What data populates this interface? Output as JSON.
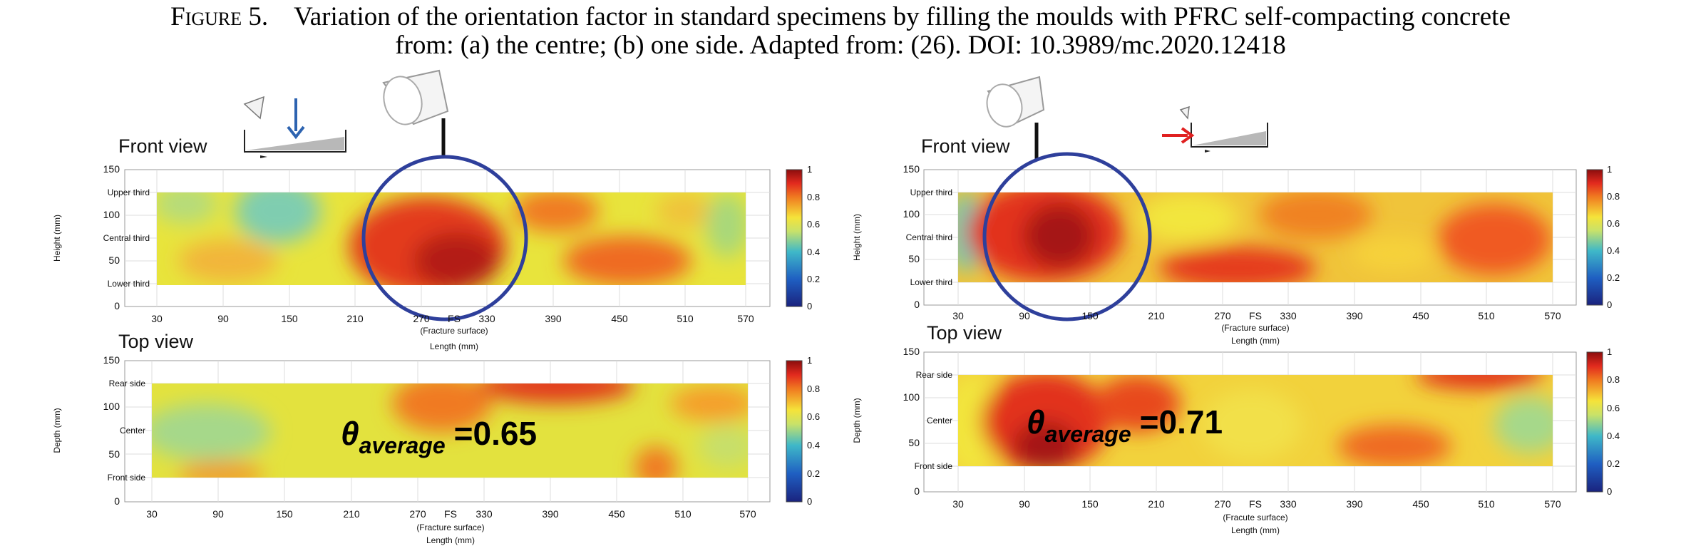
{
  "caption": {
    "label": "Figure 5.",
    "line1": "Variation of the orientation factor in standard specimens by filling the moulds with PFRC self-compacting concrete",
    "line2": "from: (a) the centre; (b) one side. Adapted from: (26). DOI: 10.3989/mc.2020.12418"
  },
  "panels": [
    {
      "front": {
        "title": "Front view",
        "ylabel": "Height (mm)",
        "yticks": [
          "0",
          "50",
          "100",
          "150"
        ],
        "zones": [
          "Upper third",
          "Central third",
          "Lower third"
        ],
        "xticks": [
          "30",
          "90",
          "150",
          "210",
          "270",
          "FS",
          "330",
          "390",
          "450",
          "510",
          "570"
        ],
        "xsub": "(Fracture surface)",
        "xlabel": "Length (mm)",
        "cbar": [
          "0",
          "0.2",
          "0.4",
          "0.6",
          "0.8",
          "1"
        ]
      },
      "top": {
        "title": "Top view",
        "ylabel": "Depth (mm)",
        "yticks": [
          "0",
          "50",
          "100",
          "150"
        ],
        "zones": [
          "Rear side",
          "Center",
          "Front side"
        ],
        "xticks": [
          "30",
          "90",
          "150",
          "210",
          "270",
          "FS",
          "330",
          "390",
          "450",
          "510",
          "570"
        ],
        "xsub": "(Fracture surface)",
        "xlabel": "Length (mm)",
        "cbar": [
          "0",
          "0.2",
          "0.4",
          "0.6",
          "0.8",
          "1"
        ]
      },
      "theta_symbol": "θ",
      "theta_sub": "average",
      "theta_value": "=0.65"
    },
    {
      "front": {
        "title": "Front view",
        "ylabel": "Height (mm)",
        "yticks": [
          "0",
          "50",
          "100",
          "150"
        ],
        "zones": [
          "Upper third",
          "Central third",
          "Lower third"
        ],
        "xticks": [
          "30",
          "90",
          "150",
          "210",
          "270",
          "FS",
          "330",
          "390",
          "450",
          "510",
          "570"
        ],
        "xsub": "(Fracture surface)",
        "xlabel": "Length (mm)",
        "cbar": [
          "0",
          "0.2",
          "0.4",
          "0.6",
          "0.8",
          "1"
        ]
      },
      "top": {
        "title": "Top view",
        "ylabel": "Depth (mm)",
        "yticks": [
          "0",
          "50",
          "100",
          "150"
        ],
        "zones": [
          "Rear side",
          "Center",
          "Front side"
        ],
        "xticks": [
          "30",
          "90",
          "150",
          "210",
          "270",
          "FS",
          "330",
          "390",
          "450",
          "510",
          "570"
        ],
        "xsub": "(Fracute surface)",
        "xlabel": "Length (mm)",
        "cbar": [
          "0",
          "0.2",
          "0.4",
          "0.6",
          "0.8",
          "1"
        ]
      },
      "theta_symbol": "θ",
      "theta_sub": "average",
      "theta_value": "=0.71"
    }
  ],
  "colors": {
    "circle": "#2e3f9b",
    "arrow_left": "#2d63b0",
    "arrow_right": "#e02020"
  }
}
